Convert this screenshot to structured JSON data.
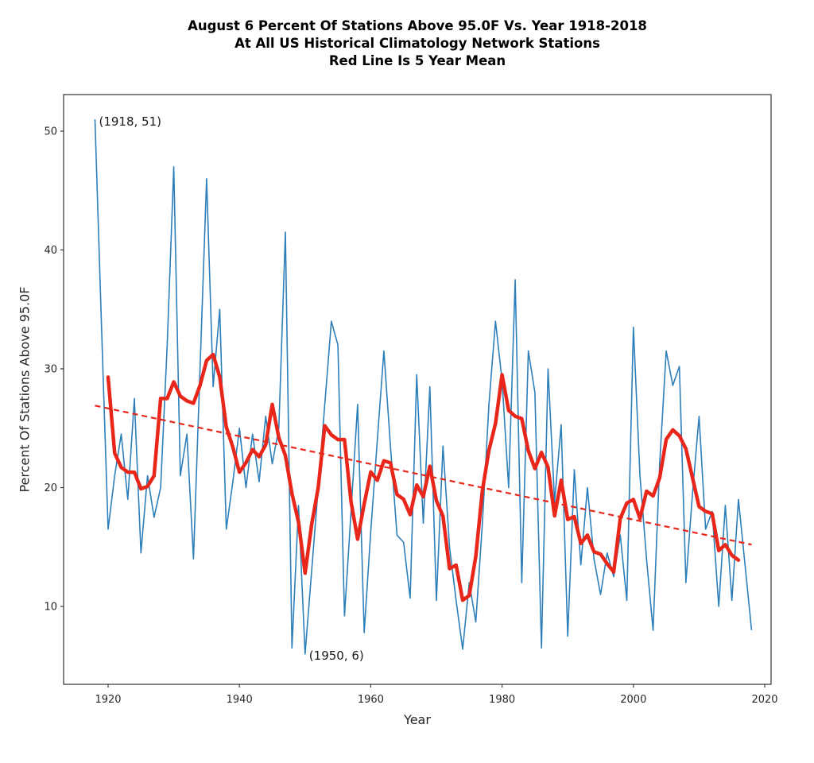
{
  "chart_data": {
    "type": "line",
    "title_lines": [
      "August 6 Percent Of Stations Above 95.0F Vs. Year 1918-2018",
      "At All US Historical Climatology Network Stations",
      "Red Line Is 5 Year Mean"
    ],
    "xlabel": "Year",
    "ylabel": "Percent Of Stations Above 95.0F",
    "x_ticks": [
      1920,
      1940,
      1960,
      1980,
      2000,
      2020
    ],
    "y_ticks": [
      10,
      20,
      30,
      40,
      50
    ],
    "xlim": [
      1913,
      2021
    ],
    "ylim": [
      3.5,
      53
    ],
    "grid": false,
    "legend": "none",
    "colors": {
      "annual_line": "#2d7fba",
      "mean_line": "#e8261a",
      "trend_line": "#e8261a",
      "axis": "#333333",
      "tick_text": "#262626",
      "annotation_text": "#1a1a1a"
    },
    "annotations": [
      {
        "text": "(1918, 51)",
        "year": 1918,
        "value": 51
      },
      {
        "text": "(1950, 6)",
        "year": 1950,
        "value": 6
      }
    ],
    "series": [
      {
        "name": "annual-percent-of-stations",
        "years": [
          1918,
          1919,
          1920,
          1921,
          1922,
          1923,
          1924,
          1925,
          1926,
          1927,
          1928,
          1929,
          1930,
          1931,
          1932,
          1933,
          1934,
          1935,
          1936,
          1937,
          1938,
          1939,
          1940,
          1941,
          1942,
          1943,
          1944,
          1945,
          1946,
          1947,
          1948,
          1949,
          1950,
          1951,
          1952,
          1953,
          1954,
          1955,
          1956,
          1957,
          1958,
          1959,
          1960,
          1961,
          1962,
          1963,
          1964,
          1965,
          1966,
          1967,
          1968,
          1969,
          1970,
          1971,
          1972,
          1973,
          1974,
          1975,
          1976,
          1977,
          1978,
          1979,
          1980,
          1981,
          1982,
          1983,
          1984,
          1985,
          1986,
          1987,
          1988,
          1989,
          1990,
          1991,
          1992,
          1993,
          1994,
          1995,
          1996,
          1997,
          1998,
          1999,
          2000,
          2001,
          2002,
          2003,
          2004,
          2005,
          2006,
          2007,
          2008,
          2009,
          2010,
          2011,
          2012,
          2013,
          2014,
          2015,
          2016,
          2017,
          2018
        ],
        "values": [
          51,
          33.5,
          16.5,
          21,
          24.5,
          19,
          27.5,
          14.5,
          21,
          17.5,
          20,
          32,
          47,
          21,
          24.5,
          14,
          30,
          46,
          28.5,
          35,
          16.5,
          20.5,
          25,
          20,
          24.5,
          20.5,
          26,
          22,
          25,
          41.5,
          6.5,
          18.5,
          6,
          13,
          20,
          27,
          34,
          32,
          9.2,
          18,
          27,
          7.8,
          16.3,
          24,
          31.5,
          23.5,
          16,
          15.4,
          10.7,
          29.5,
          17,
          28.5,
          10.5,
          23.5,
          15,
          10.5,
          6.4,
          12,
          8.7,
          17,
          27,
          34,
          29,
          20,
          37.5,
          12,
          31.5,
          28,
          6.5,
          30,
          18.8,
          25.3,
          7.5,
          21.5,
          13.5,
          20,
          14,
          11,
          14.5,
          12.5,
          16,
          10.5,
          33.5,
          21,
          14,
          8,
          22,
          31.5,
          28.6,
          30.2,
          12,
          19.5,
          26,
          16.5,
          18,
          10,
          18.5,
          10.5,
          19,
          13.5,
          8
        ]
      },
      {
        "name": "5-year-mean",
        "derived": "centered 5-year rolling mean of annual series, plotted 1920-2016"
      },
      {
        "name": "linear-trend-dashed",
        "points": [
          [
            1918,
            26.9
          ],
          [
            2018,
            15.2
          ]
        ]
      }
    ]
  }
}
